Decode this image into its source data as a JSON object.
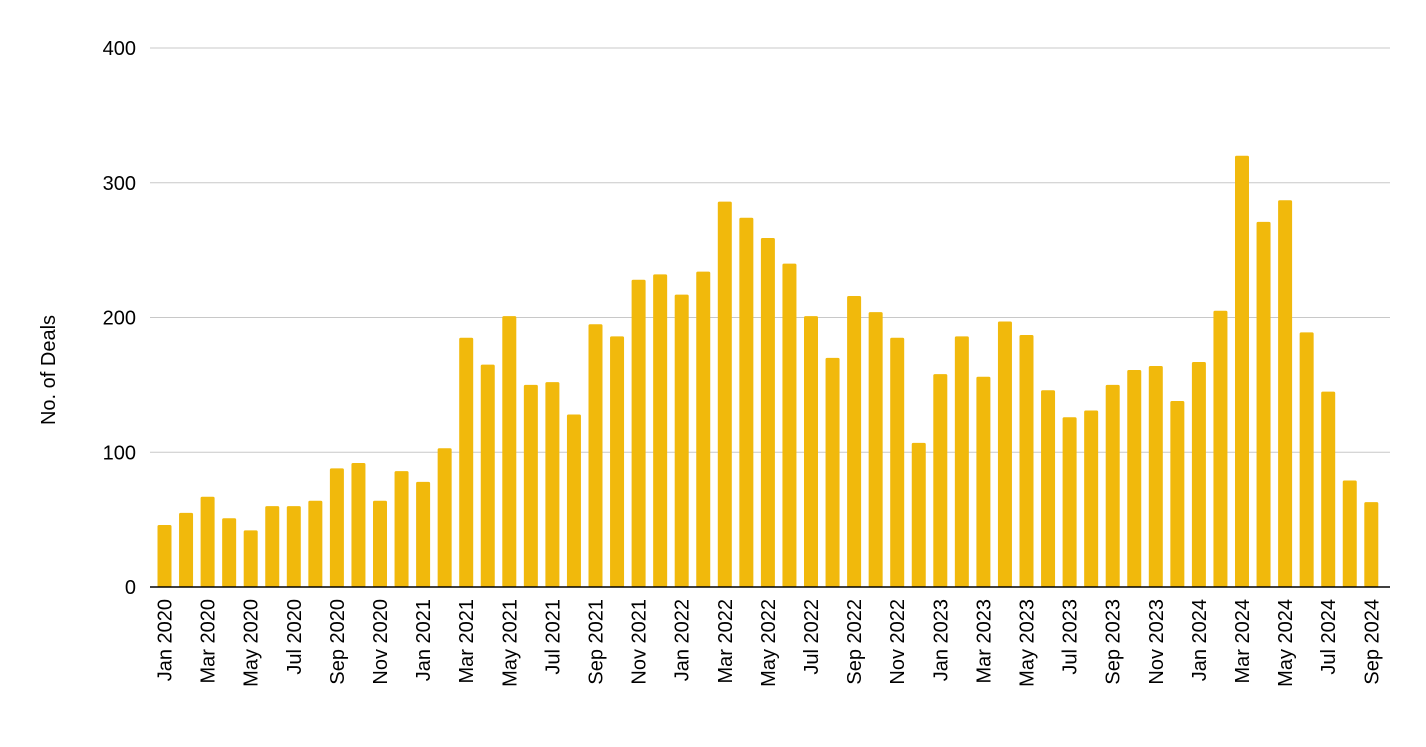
{
  "chart_data": {
    "type": "bar",
    "title": "",
    "xlabel": "",
    "ylabel": "No. of Deals",
    "ylim": [
      0,
      400
    ],
    "yticks": [
      0,
      100,
      200,
      300,
      400
    ],
    "grid": true,
    "legend": "none",
    "bar_color": "#F1B90C",
    "categories": [
      "Jan 2020",
      "Feb 2020",
      "Mar 2020",
      "Apr 2020",
      "May 2020",
      "Jun 2020",
      "Jul 2020",
      "Aug 2020",
      "Sep 2020",
      "Oct 2020",
      "Nov 2020",
      "Dec 2020",
      "Jan 2021",
      "Feb 2021",
      "Mar 2021",
      "Apr 2021",
      "May 2021",
      "Jun 2021",
      "Jul 2021",
      "Aug 2021",
      "Sep 2021",
      "Oct 2021",
      "Nov 2021",
      "Dec 2021",
      "Jan 2022",
      "Feb 2022",
      "Mar 2022",
      "Apr 2022",
      "May 2022",
      "Jun 2022",
      "Jul 2022",
      "Aug 2022",
      "Sep 2022",
      "Oct 2022",
      "Nov 2022",
      "Dec 2022",
      "Jan 2023",
      "Feb 2023",
      "Mar 2023",
      "Apr 2023",
      "May 2023",
      "Jun 2023",
      "Jul 2023",
      "Aug 2023",
      "Sep 2023",
      "Oct 2023",
      "Nov 2023",
      "Dec 2023",
      "Jan 2024",
      "Feb 2024",
      "Mar 2024",
      "Apr 2024",
      "May 2024",
      "Jun 2024",
      "Jul 2024",
      "Aug 2024",
      "Sep 2024"
    ],
    "tick_labels": [
      "Jan 2020",
      "Mar 2020",
      "May 2020",
      "Jul 2020",
      "Sep 2020",
      "Nov 2020",
      "Jan 2021",
      "Mar 2021",
      "May 2021",
      "Jul 2021",
      "Sep 2021",
      "Nov 2021",
      "Jan 2022",
      "Mar 2022",
      "May 2022",
      "Jul 2022",
      "Sep 2022",
      "Nov 2022",
      "Jan 2023",
      "Mar 2023",
      "May 2023",
      "Jul 2023",
      "Sep 2023",
      "Nov 2023",
      "Jan 2024",
      "Mar 2024",
      "May 2024",
      "Jul 2024",
      "Sep 2024"
    ],
    "values": [
      46,
      55,
      67,
      51,
      42,
      60,
      60,
      64,
      88,
      92,
      64,
      86,
      78,
      103,
      185,
      165,
      201,
      150,
      152,
      128,
      195,
      186,
      228,
      232,
      217,
      234,
      286,
      274,
      259,
      240,
      201,
      170,
      216,
      204,
      185,
      107,
      158,
      186,
      156,
      197,
      187,
      146,
      126,
      131,
      150,
      161,
      164,
      138,
      167,
      205,
      320,
      271,
      287,
      189,
      145,
      79,
      63
    ]
  }
}
